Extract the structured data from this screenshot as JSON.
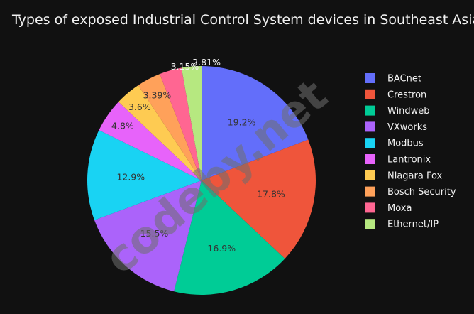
{
  "chart_data": {
    "type": "pie",
    "title": "Types of exposed Industrial Control System devices in Southeast Asia",
    "watermark": "codeby.net",
    "legend_position": "right",
    "slices": [
      {
        "label": "BACnet",
        "value": 19.2,
        "text": "19.2%",
        "color": "#636efa"
      },
      {
        "label": "Crestron",
        "value": 17.8,
        "text": "17.8%",
        "color": "#ef553b"
      },
      {
        "label": "Windweb",
        "value": 16.9,
        "text": "16.9%",
        "color": "#00cc96"
      },
      {
        "label": "VXworks",
        "value": 15.5,
        "text": "15.5%",
        "color": "#ab63fa"
      },
      {
        "label": "Modbus",
        "value": 12.9,
        "text": "12.9%",
        "color": "#19d3f3"
      },
      {
        "label": "Lantronix",
        "value": 4.8,
        "text": "4.8%",
        "color": "#e763fa"
      },
      {
        "label": "Niagara Fox",
        "value": 3.6,
        "text": "3.6%",
        "color": "#fecb52"
      },
      {
        "label": "Bosch Security",
        "value": 3.39,
        "text": "3.39%",
        "color": "#ffa15a"
      },
      {
        "label": "Moxa",
        "value": 3.15,
        "text": "3.15%",
        "color": "#ff6692"
      },
      {
        "label": "Ethernet/IP",
        "value": 2.81,
        "text": "2.81%",
        "color": "#b6e880"
      }
    ]
  }
}
